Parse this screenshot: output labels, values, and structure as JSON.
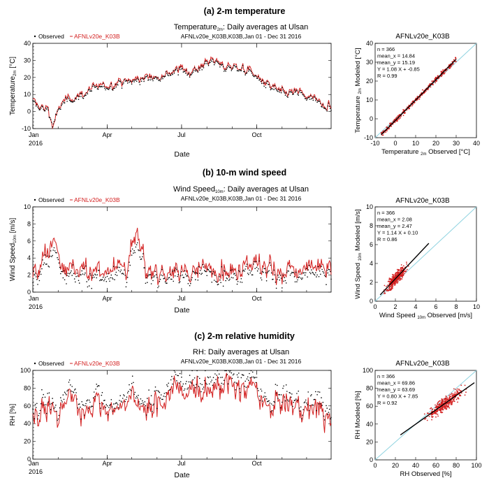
{
  "chart_data": [
    {
      "type": "line",
      "panel_heading": "(a) 2-m temperature",
      "title": "Temperature 2m: Daily averages at Ulsan",
      "title_parts": [
        "Temperature",
        "2m",
        ": Daily averages at Ulsan"
      ],
      "subtitle": "AFNLv20e_K03B,K03B,Jan 01 - Dec 31 2016",
      "xlabel": "Date",
      "ylabel": "Temperature 2m [°C]",
      "ylabel_parts": [
        "Temperature",
        "2m",
        " [°C]"
      ],
      "x_tick_labels": [
        "Jan",
        "Apr",
        "Jul",
        "Oct"
      ],
      "x_tick_months": [
        0,
        3,
        6,
        9
      ],
      "x_year_label": "2016",
      "ylim": [
        -10,
        40
      ],
      "y_ticks": [
        -10,
        0,
        10,
        20,
        30,
        40
      ],
      "legend": {
        "observed": "Observed",
        "modeled": "AFNLv20e_K03B",
        "position": "top-left"
      },
      "series_colors": {
        "observed": "#000000",
        "modeled": "#d32020"
      },
      "days": 366,
      "series_control_points": {
        "day": [
          1,
          10,
          20,
          25,
          35,
          45,
          60,
          75,
          90,
          110,
          130,
          150,
          165,
          180,
          195,
          210,
          222,
          235,
          250,
          270,
          290,
          310,
          325,
          340,
          355,
          366
        ],
        "modeled": [
          6,
          3,
          2,
          -9,
          4,
          8,
          10,
          14,
          15,
          18,
          19,
          21,
          23,
          25,
          24,
          28,
          31,
          26,
          27,
          23,
          15,
          11,
          12,
          8,
          6,
          2
        ],
        "observed": [
          5,
          2,
          1,
          -8,
          3,
          7,
          9,
          13,
          14,
          17,
          18,
          20,
          22,
          24,
          23,
          27,
          30,
          25,
          26,
          22,
          14,
          10,
          11,
          7,
          5,
          1
        ]
      },
      "scatter": {
        "title": "AFNLv20e_K03B",
        "xlabel": "Temperature 2m Observed [°C]",
        "xlabel_parts": [
          "Temperature ",
          "2m",
          " Observed [°C]"
        ],
        "ylabel": "Temperature 2m Modeled [°C]",
        "ylabel_parts": [
          "Temperature ",
          "2m",
          " Modeled [°C]"
        ],
        "xlim": [
          -10,
          40
        ],
        "ylim": [
          -10,
          40
        ],
        "ticks": [
          -10,
          0,
          10,
          20,
          30,
          40
        ],
        "stats": [
          "n = 366",
          "mean_x = 14.84",
          "mean_y = 15.19",
          "Y = 1.08 X + -0.85",
          "R = 0.99"
        ],
        "n": 366,
        "mean_x": 14.84,
        "mean_y": 15.19,
        "slope": 1.08,
        "intercept": -0.85,
        "r": 0.99,
        "fit_range": [
          -7,
          30
        ]
      }
    },
    {
      "type": "line",
      "panel_heading": "(b) 10-m wind speed",
      "title": "Wind Speed 10m: Daily averages at Ulsan",
      "title_parts": [
        "Wind Speed",
        "10m",
        ": Daily averages at Ulsan"
      ],
      "subtitle": "AFNLv20e_K03B,K03B,Jan 01 - Dec 31 2016",
      "xlabel": "Date",
      "ylabel": "Wind Speed 10m [m/s]",
      "ylabel_parts": [
        "Wind Speed",
        "10m",
        " [m/s]"
      ],
      "x_tick_labels": [
        "Jan",
        "Apr",
        "Jul",
        "Oct"
      ],
      "x_tick_months": [
        0,
        3,
        6,
        9
      ],
      "x_year_label": "2016",
      "ylim": [
        0,
        10
      ],
      "y_ticks": [
        0,
        2,
        4,
        6,
        8,
        10
      ],
      "legend": {
        "observed": "Observed",
        "modeled": "AFNLv20e_K03B",
        "position": "top-left"
      },
      "series_colors": {
        "observed": "#000000",
        "modeled": "#d32020"
      },
      "days": 366,
      "series_control_points": {
        "day": [
          1,
          15,
          28,
          40,
          60,
          85,
          100,
          115,
          128,
          140,
          170,
          200,
          215,
          245,
          270,
          300,
          330,
          350,
          366
        ],
        "modeled": [
          2.5,
          3.8,
          6.1,
          2.5,
          2.8,
          2.3,
          3.5,
          2.6,
          6.6,
          2.2,
          2.6,
          2.2,
          3.2,
          2.5,
          3.6,
          2.4,
          2.6,
          3.0,
          2.6
        ],
        "observed": [
          1.8,
          2.8,
          5.0,
          1.8,
          2.0,
          1.6,
          2.6,
          1.9,
          5.2,
          1.6,
          2.0,
          1.7,
          2.6,
          1.9,
          2.9,
          1.8,
          1.9,
          2.2,
          1.9
        ]
      },
      "scatter": {
        "title": "AFNLv20e_K03B",
        "xlabel": "Wind Speed 10m Observed [m/s]",
        "xlabel_parts": [
          "Wind Speed ",
          "10m",
          " Observed [m/s]"
        ],
        "ylabel": "Wind Speed 10m Modeled [m/s]",
        "ylabel_parts": [
          "Wind Speed ",
          "10m",
          " Modeled [m/s]"
        ],
        "xlim": [
          0,
          10
        ],
        "ylim": [
          0,
          10
        ],
        "ticks": [
          0,
          2,
          4,
          6,
          8,
          10
        ],
        "stats": [
          "n = 366",
          "mean_x = 2.08",
          "mean_y = 2.47",
          "Y = 1.14 X + 0.10",
          "R = 0.86"
        ],
        "n": 366,
        "mean_x": 2.08,
        "mean_y": 2.47,
        "slope": 1.14,
        "intercept": 0.1,
        "r": 0.86,
        "fit_range": [
          0.5,
          5.3
        ]
      }
    },
    {
      "type": "line",
      "panel_heading": "(c) 2-m relative humidity",
      "title": "RH: Daily averages at Ulsan",
      "title_parts": [
        "RH",
        "",
        ": Daily averages at Ulsan"
      ],
      "subtitle": "AFNLv20e_K03B,K03B,Jan 01 - Dec 31 2016",
      "xlabel": "Date",
      "ylabel": "RH [%]",
      "ylabel_parts": [
        "RH",
        "",
        " [%]"
      ],
      "x_tick_labels": [
        "Jan",
        "Apr",
        "Jul",
        "Oct"
      ],
      "x_tick_months": [
        0,
        3,
        6,
        9
      ],
      "x_year_label": "2016",
      "ylim": [
        0,
        100
      ],
      "y_ticks": [
        0,
        20,
        40,
        60,
        80,
        100
      ],
      "legend": {
        "observed": "Observed",
        "modeled": "AFNLv20e_K03B",
        "position": "top-left"
      },
      "series_colors": {
        "observed": "#000000",
        "modeled": "#d32020"
      },
      "days": 366,
      "series_control_points": {
        "day": [
          1,
          15,
          30,
          45,
          60,
          80,
          100,
          120,
          140,
          160,
          175,
          190,
          210,
          230,
          250,
          270,
          290,
          310,
          330,
          350,
          366
        ],
        "modeled": [
          50,
          60,
          45,
          75,
          55,
          65,
          50,
          70,
          55,
          65,
          82,
          80,
          78,
          82,
          78,
          80,
          55,
          65,
          55,
          60,
          40
        ],
        "observed": [
          55,
          70,
          50,
          85,
          60,
          75,
          55,
          80,
          60,
          75,
          92,
          90,
          88,
          93,
          88,
          90,
          60,
          75,
          60,
          70,
          45
        ]
      },
      "scatter": {
        "title": "AFNLv20e_K03B",
        "xlabel": "RH Observed [%]",
        "xlabel_parts": [
          "RH",
          "",
          " Observed [%]"
        ],
        "ylabel": "RH Modeled [%]",
        "ylabel_parts": [
          "RH",
          "",
          " Modeled [%]"
        ],
        "xlim": [
          0,
          100
        ],
        "ylim": [
          0,
          100
        ],
        "ticks": [
          0,
          20,
          40,
          60,
          80,
          100
        ],
        "stats": [
          "n = 366",
          "mean_x = 69.86",
          "mean_y = 63.69",
          "Y = 0.80 X + 7.85",
          "R = 0.92"
        ],
        "n": 366,
        "mean_x": 69.86,
        "mean_y": 63.69,
        "slope": 0.8,
        "intercept": 7.85,
        "r": 0.92,
        "fit_range": [
          25,
          98
        ]
      }
    }
  ]
}
